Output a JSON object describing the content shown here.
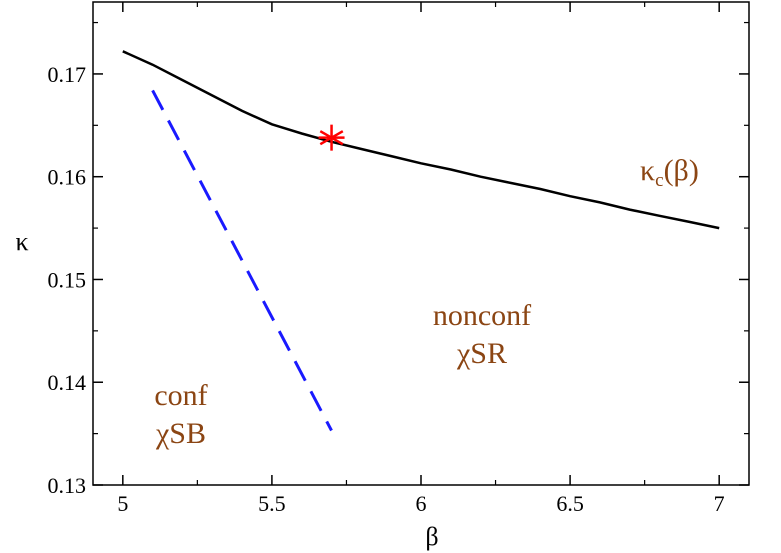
{
  "chart_data": {
    "type": "line",
    "xlabel": "β",
    "ylabel": "κ",
    "xlim": [
      4.9,
      7.1
    ],
    "ylim": [
      0.13,
      0.177
    ],
    "x_ticks": [
      "5",
      "5.5",
      "6",
      "6.5",
      "7"
    ],
    "y_ticks": [
      "0.13",
      "0.14",
      "0.15",
      "0.16",
      "0.17"
    ],
    "x_tick_values": [
      5,
      5.5,
      6,
      6.5,
      7
    ],
    "y_tick_values": [
      0.13,
      0.14,
      0.15,
      0.16,
      0.17
    ],
    "grid": false,
    "series": [
      {
        "name": "κc(β)",
        "style": "solid",
        "color": "#000000",
        "x": [
          5.0,
          5.1,
          5.2,
          5.3,
          5.4,
          5.5,
          5.6,
          5.7,
          5.8,
          5.9,
          6.0,
          6.1,
          6.2,
          6.3,
          6.4,
          6.5,
          6.6,
          6.7,
          6.8,
          6.9,
          7.0
        ],
        "y": [
          0.1722,
          0.1709,
          0.1694,
          0.1679,
          0.1664,
          0.1651,
          0.1642,
          0.1634,
          0.1627,
          0.162,
          0.1613,
          0.1607,
          0.16,
          0.1594,
          0.1588,
          0.1581,
          0.1575,
          0.1568,
          0.1562,
          0.1556,
          0.155
        ]
      },
      {
        "name": "",
        "style": "dashed",
        "color": "#1a1aff",
        "x": [
          5.1,
          5.7
        ],
        "y": [
          0.1684,
          0.1353
        ]
      }
    ],
    "markers": [
      {
        "x": 5.7,
        "y": 0.1638,
        "symbol": "asterisk",
        "color": "#ff0000"
      }
    ],
    "annotations": {
      "kappa_c_main": "κ",
      "kappa_c_sub": "c",
      "kappa_c_tail": "(β)",
      "nonconf_line1": "nonconf",
      "nonconf_line2": "χSR",
      "conf_line1": "conf",
      "conf_line2": "χSB"
    }
  }
}
